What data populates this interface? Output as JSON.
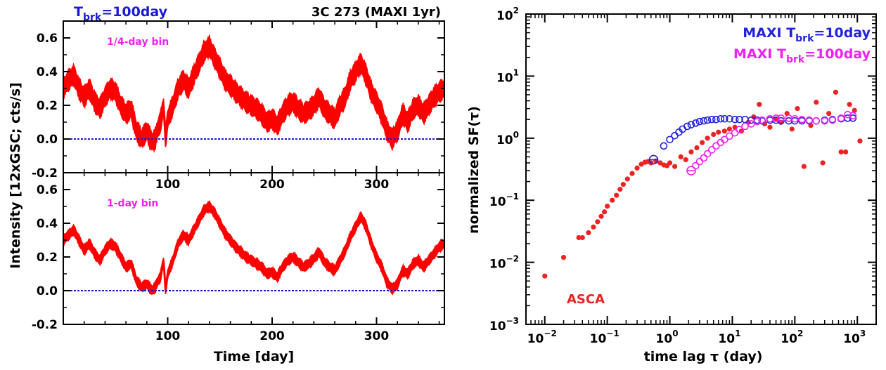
{
  "chart_data": [
    {
      "type": "line",
      "panel": "top-left",
      "title": "3C 273 (MAXI 1yr)",
      "model_label": {
        "main": "T",
        "sub": "brk",
        "rest": "=100day"
      },
      "bin_label": "1/4-day bin",
      "xlabel": "",
      "ylabel": "Intensity [12xGSC; cts/s]",
      "xlim": [
        0,
        365
      ],
      "ylim": [
        -0.2,
        0.7
      ],
      "xticks": [
        100,
        200,
        300
      ],
      "yticks": [
        "-0.2",
        "0.0",
        "0.2",
        "0.4",
        "0.6"
      ],
      "zero_line": 0.0,
      "series": [
        {
          "x": [
            0,
            5,
            10,
            15,
            20,
            25,
            30,
            35,
            40,
            45,
            50,
            55,
            60,
            65,
            70,
            75,
            80,
            85,
            88,
            90,
            93,
            96,
            98,
            100,
            105,
            110,
            115,
            120,
            125,
            130,
            135,
            140,
            145,
            150,
            155,
            160,
            165,
            170,
            175,
            180,
            185,
            190,
            195,
            200,
            205,
            210,
            215,
            220,
            225,
            230,
            235,
            240,
            245,
            250,
            255,
            260,
            265,
            270,
            275,
            280,
            285,
            290,
            295,
            300,
            305,
            310,
            315,
            320,
            325,
            330,
            335,
            340,
            345,
            350,
            355,
            360,
            365
          ],
          "y": [
            0.3,
            0.35,
            0.38,
            0.3,
            0.25,
            0.3,
            0.22,
            0.18,
            0.25,
            0.3,
            0.28,
            0.2,
            0.15,
            0.18,
            0.05,
            0.0,
            0.05,
            -0.02,
            0.0,
            0.05,
            0.1,
            0.2,
            0.0,
            0.12,
            0.2,
            0.3,
            0.35,
            0.3,
            0.38,
            0.45,
            0.52,
            0.55,
            0.48,
            0.42,
            0.35,
            0.32,
            0.28,
            0.25,
            0.22,
            0.2,
            0.18,
            0.15,
            0.1,
            0.12,
            0.08,
            0.15,
            0.2,
            0.22,
            0.18,
            0.15,
            0.17,
            0.2,
            0.25,
            0.18,
            0.15,
            0.12,
            0.2,
            0.25,
            0.35,
            0.4,
            0.45,
            0.38,
            0.28,
            0.22,
            0.15,
            0.05,
            0.0,
            0.05,
            0.15,
            0.1,
            0.18,
            0.2,
            0.15,
            0.2,
            0.25,
            0.28,
            0.3
          ]
        }
      ]
    },
    {
      "type": "line",
      "panel": "bottom-left",
      "bin_label": "1-day bin",
      "xlabel": "Time [day]",
      "ylabel": "Intensity [12xGSC; cts/s]",
      "xlim": [
        0,
        365
      ],
      "ylim": [
        -0.2,
        0.7
      ],
      "xticks": [
        100,
        200,
        300
      ],
      "yticks": [
        "-0.2",
        "0.0",
        "0.2",
        "0.4",
        "0.6"
      ],
      "zero_line": 0.0,
      "series": [
        {
          "x": [
            0,
            5,
            10,
            15,
            20,
            25,
            30,
            35,
            40,
            45,
            50,
            55,
            60,
            65,
            70,
            75,
            80,
            85,
            88,
            90,
            93,
            96,
            98,
            100,
            105,
            110,
            115,
            120,
            125,
            130,
            135,
            140,
            145,
            150,
            155,
            160,
            165,
            170,
            175,
            180,
            185,
            190,
            195,
            200,
            205,
            210,
            215,
            220,
            225,
            230,
            235,
            240,
            245,
            250,
            255,
            260,
            265,
            270,
            275,
            280,
            285,
            290,
            295,
            300,
            305,
            310,
            315,
            320,
            325,
            330,
            335,
            340,
            345,
            350,
            355,
            360,
            365
          ],
          "y": [
            0.3,
            0.33,
            0.36,
            0.3,
            0.24,
            0.28,
            0.22,
            0.18,
            0.24,
            0.28,
            0.26,
            0.2,
            0.14,
            0.16,
            0.06,
            0.02,
            0.04,
            0.0,
            0.02,
            0.05,
            0.08,
            0.18,
            0.0,
            0.1,
            0.18,
            0.28,
            0.33,
            0.3,
            0.36,
            0.42,
            0.48,
            0.5,
            0.46,
            0.4,
            0.34,
            0.3,
            0.26,
            0.23,
            0.2,
            0.18,
            0.16,
            0.14,
            0.1,
            0.11,
            0.08,
            0.14,
            0.18,
            0.2,
            0.17,
            0.14,
            0.16,
            0.19,
            0.23,
            0.17,
            0.14,
            0.12,
            0.18,
            0.24,
            0.32,
            0.38,
            0.44,
            0.38,
            0.28,
            0.2,
            0.14,
            0.05,
            0.01,
            0.04,
            0.12,
            0.1,
            0.16,
            0.18,
            0.14,
            0.18,
            0.22,
            0.26,
            0.28
          ]
        }
      ]
    },
    {
      "type": "scatter",
      "panel": "right",
      "title": "",
      "xlabel": "time lag τ (day)",
      "ylabel": "normalized SF(τ)",
      "xscale": "log",
      "yscale": "log",
      "xlim": [
        0.005,
        2000
      ],
      "ylim": [
        0.001,
        100
      ],
      "xticks": [
        {
          "base": "10",
          "exp": "−2"
        },
        {
          "base": "10",
          "exp": "−1"
        },
        {
          "base": "10",
          "exp": "0"
        },
        {
          "base": "10",
          "exp": "1"
        },
        {
          "base": "10",
          "exp": "2"
        },
        {
          "base": "10",
          "exp": "3"
        }
      ],
      "yticks": [
        {
          "base": "10",
          "exp": "−3"
        },
        {
          "base": "10",
          "exp": "−2"
        },
        {
          "base": "10",
          "exp": "−1"
        },
        {
          "base": "10",
          "exp": "0"
        },
        {
          "base": "10",
          "exp": "1"
        },
        {
          "base": "10",
          "exp": "2"
        }
      ],
      "legend_placement": "top-right",
      "series": [
        {
          "name": "ASCA",
          "color": "#ee2222",
          "marker": "filled-dot",
          "x": [
            0.01,
            0.02,
            0.035,
            0.04,
            0.05,
            0.06,
            0.07,
            0.08,
            0.09,
            0.1,
            0.12,
            0.14,
            0.16,
            0.18,
            0.21,
            0.25,
            0.3,
            0.35,
            0.4,
            0.45,
            0.5,
            0.6,
            0.7,
            0.8,
            0.9,
            1.0,
            1.2,
            1.5,
            1.8,
            2.2,
            2.7,
            3.3,
            4.0,
            5.0,
            6.0,
            7.5,
            9.0,
            11,
            14,
            18,
            22,
            27,
            33,
            40,
            50,
            60,
            75,
            90,
            110,
            140,
            180,
            220,
            280,
            350,
            450,
            550,
            650,
            750,
            900,
            1100
          ],
          "y": [
            0.006,
            0.012,
            0.025,
            0.025,
            0.03,
            0.037,
            0.045,
            0.055,
            0.065,
            0.08,
            0.1,
            0.12,
            0.15,
            0.18,
            0.22,
            0.27,
            0.33,
            0.38,
            0.41,
            0.42,
            0.4,
            0.43,
            0.4,
            0.37,
            0.36,
            0.4,
            0.35,
            0.5,
            0.45,
            0.6,
            0.7,
            0.85,
            1.0,
            1.15,
            1.25,
            1.3,
            1.4,
            1.5,
            1.3,
            1.8,
            2.2,
            3.5,
            1.7,
            1.5,
            2.0,
            1.8,
            2.5,
            1.4,
            3.0,
            0.35,
            1.6,
            3.8,
            0.4,
            2.5,
            5.5,
            0.6,
            0.6,
            3.5,
            2.8,
            0.9
          ]
        },
        {
          "name": "MAXI T_brk=10day",
          "color": "#2222dd",
          "marker": "open-circle",
          "x": [
            0.55,
            0.8,
            1.0,
            1.2,
            1.4,
            1.6,
            1.9,
            2.2,
            2.6,
            3.0,
            3.5,
            4.0,
            4.7,
            5.5,
            6.5,
            7.5,
            9,
            11,
            13,
            16,
            20,
            25,
            30,
            40,
            50,
            60,
            80,
            100,
            130,
            170,
            220,
            300,
            400,
            550,
            700,
            850
          ],
          "y": [
            0.45,
            0.75,
            0.95,
            1.1,
            1.25,
            1.4,
            1.55,
            1.65,
            1.75,
            1.85,
            1.9,
            1.95,
            2.0,
            2.0,
            2.05,
            2.05,
            2.05,
            2.0,
            2.0,
            2.0,
            1.95,
            1.95,
            1.9,
            1.95,
            1.95,
            1.9,
            1.9,
            1.9,
            1.9,
            1.9,
            1.9,
            1.95,
            2.0,
            2.05,
            2.1,
            2.1
          ]
        },
        {
          "name": "MAXI T_brk=100day",
          "color": "#ee22ee",
          "marker": "open-circle",
          "x": [
            2.2,
            2.6,
            3.0,
            3.5,
            4.0,
            4.7,
            5.5,
            6.5,
            7.5,
            9,
            11,
            13,
            16,
            20,
            25,
            30,
            40,
            50,
            60,
            80,
            100,
            130,
            170,
            220,
            300,
            400,
            550,
            700,
            850
          ],
          "y": [
            0.3,
            0.36,
            0.42,
            0.48,
            0.56,
            0.65,
            0.75,
            0.85,
            0.95,
            1.08,
            1.22,
            1.38,
            1.55,
            1.7,
            1.85,
            1.95,
            2.05,
            2.1,
            2.1,
            2.1,
            2.05,
            2.0,
            1.95,
            1.9,
            1.9,
            1.95,
            2.1,
            2.4,
            2.3
          ]
        }
      ],
      "legend": [
        {
          "main": "MAXI T",
          "sub": "brk",
          "rest": "=10day",
          "color": "#2222dd"
        },
        {
          "main": "MAXI T",
          "sub": "brk",
          "rest": "=100day",
          "color": "#ee22ee"
        }
      ],
      "annotation": "ASCA"
    }
  ],
  "colors": {
    "curve": "#ff0000",
    "zero_line": "#1a1ad6",
    "frame": "#000000",
    "top_label": "#1a1ad6",
    "bin_label": "#ee22ee"
  }
}
